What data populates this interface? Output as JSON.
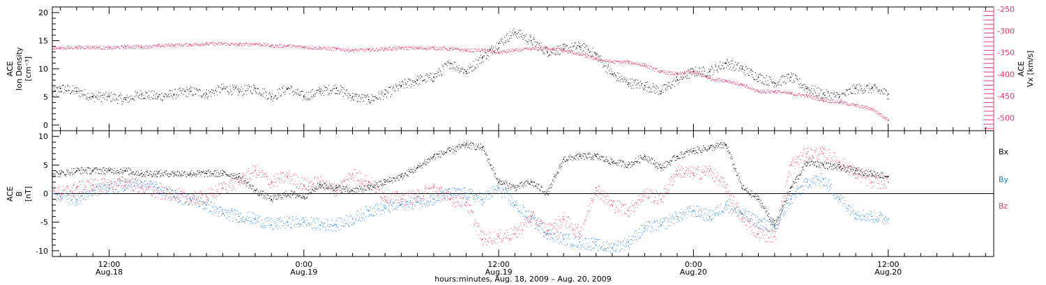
{
  "chart_data": [
    {
      "type": "scatter",
      "panel": "top",
      "x_unit": "hours since 2009-08-18 00:00 UT",
      "xlim": [
        8.5,
        66.5
      ],
      "left_axis": {
        "label_lines": [
          "ACE",
          "Ion Density",
          "[cm⁻³]"
        ],
        "ylim": [
          -1,
          21
        ],
        "ticks": [
          0,
          5,
          10,
          15,
          20
        ]
      },
      "right_axis": {
        "label_lines": [
          "ACE",
          "Vx [km/s]"
        ],
        "ylim": [
          -530,
          -245
        ],
        "ticks": [
          -250,
          -300,
          -350,
          -400,
          -450,
          -500
        ],
        "color": "#e8396a"
      },
      "series": [
        {
          "color": "#000000",
          "axis": "left",
          "x": [
            8.5,
            9.0,
            10.0,
            11.0,
            12.0,
            13.0,
            14.0,
            15.0,
            16.0,
            17.0,
            18.0,
            19.0,
            20.0,
            21.0,
            22.0,
            23.0,
            24.0,
            25.0,
            26.0,
            27.0,
            28.0,
            29.0,
            30.0,
            31.0,
            32.0,
            33.0,
            34.0,
            35.0,
            36.0,
            37.0,
            38.0,
            39.0,
            40.0,
            41.0,
            42.0,
            43.0,
            44.0,
            45.0,
            46.0,
            47.0,
            48.0,
            49.0,
            50.0,
            51.0,
            52.0,
            53.0,
            54.0,
            55.0,
            56.0,
            57.0,
            58.0,
            59.0,
            60.0
          ],
          "y": [
            5.5,
            6.5,
            6.0,
            5.0,
            5.0,
            4.5,
            5.5,
            5.0,
            5.5,
            6.0,
            5.5,
            6.5,
            6.0,
            6.5,
            5.0,
            6.5,
            5.0,
            6.0,
            6.5,
            5.0,
            4.5,
            5.5,
            7.0,
            8.0,
            8.5,
            11.0,
            9.5,
            12.0,
            14.5,
            16.5,
            15.0,
            13.0,
            13.5,
            14.0,
            12.5,
            9.0,
            7.5,
            7.0,
            6.0,
            8.0,
            9.5,
            9.5,
            11.0,
            10.0,
            8.5,
            7.5,
            8.5,
            6.5,
            5.5,
            5.0,
            6.5,
            6.5,
            5.5
          ]
        },
        {
          "color": "#e8396a",
          "axis": "right",
          "x": [
            8.5,
            9.0,
            10.0,
            11.0,
            12.0,
            13.0,
            14.0,
            15.0,
            16.0,
            17.0,
            18.0,
            19.0,
            20.0,
            21.0,
            22.0,
            23.0,
            24.0,
            25.0,
            26.0,
            27.0,
            28.0,
            29.0,
            30.0,
            31.0,
            32.0,
            33.0,
            34.0,
            35.0,
            36.0,
            37.0,
            38.0,
            39.0,
            40.0,
            41.0,
            42.0,
            43.0,
            44.0,
            45.0,
            46.0,
            47.0,
            48.0,
            49.0,
            50.0,
            51.0,
            52.0,
            53.0,
            54.0,
            55.0,
            56.0,
            57.0,
            58.0,
            59.0,
            60.0
          ],
          "y": [
            -340,
            -340,
            -338,
            -338,
            -340,
            -337,
            -337,
            -335,
            -333,
            -332,
            -330,
            -330,
            -332,
            -330,
            -335,
            -335,
            -338,
            -340,
            -342,
            -345,
            -344,
            -342,
            -340,
            -340,
            -340,
            -342,
            -345,
            -345,
            -350,
            -345,
            -342,
            -340,
            -345,
            -355,
            -365,
            -372,
            -372,
            -380,
            -395,
            -400,
            -395,
            -410,
            -415,
            -425,
            -440,
            -440,
            -445,
            -450,
            -460,
            -465,
            -472,
            -480,
            -505
          ]
        }
      ]
    },
    {
      "type": "scatter",
      "panel": "bottom",
      "x_unit": "hours since 2009-08-18 00:00 UT",
      "xlim": [
        8.5,
        66.5
      ],
      "left_axis": {
        "label_lines": [
          "ACE",
          "B",
          "[nT]"
        ],
        "ylim": [
          -11,
          11
        ],
        "ticks": [
          -10,
          -5,
          0,
          5,
          10
        ]
      },
      "x_tick_labels": [
        {
          "time": "12:00",
          "date": "Aug.18"
        },
        {
          "time": "0:00",
          "date": "Aug.19"
        },
        {
          "time": "12:00",
          "date": "Aug.19"
        },
        {
          "time": "0:00",
          "date": "Aug.20"
        },
        {
          "time": "12:00",
          "date": "Aug.20"
        }
      ],
      "x_tick_hours": [
        12,
        24,
        36,
        48,
        60
      ],
      "xlabel": "hours:minutes, Aug. 18, 2009 – Aug. 20, 2009",
      "series": [
        {
          "name": "Bx",
          "color": "#000000",
          "x": [
            8.5,
            9.0,
            10.0,
            11.0,
            12.0,
            13.0,
            14.0,
            15.0,
            16.0,
            17.0,
            18.0,
            19.0,
            20.0,
            21.0,
            22.0,
            23.0,
            24.0,
            25.0,
            26.0,
            27.0,
            28.0,
            29.0,
            30.0,
            31.0,
            32.0,
            33.0,
            34.0,
            35.0,
            36.0,
            37.0,
            38.0,
            39.0,
            40.0,
            41.0,
            42.0,
            43.0,
            44.0,
            45.0,
            46.0,
            47.0,
            48.0,
            49.0,
            50.0,
            51.0,
            52.0,
            53.0,
            54.0,
            55.0,
            56.0,
            57.0,
            58.0,
            59.0,
            60.0
          ],
          "y": [
            3.5,
            3.5,
            4.0,
            4.0,
            4.0,
            4.0,
            3.5,
            3.5,
            3.5,
            3.5,
            3.5,
            3.5,
            3.0,
            0.5,
            -1.0,
            0.0,
            -0.5,
            1.5,
            1.0,
            0.5,
            1.0,
            2.0,
            3.0,
            4.5,
            6.5,
            7.5,
            8.5,
            8.0,
            2.0,
            1.0,
            2.0,
            0.0,
            6.0,
            6.5,
            6.5,
            5.5,
            5.0,
            6.5,
            4.5,
            6.5,
            7.5,
            8.0,
            8.5,
            1.0,
            -1.0,
            -5.5,
            1.0,
            5.5,
            5.0,
            4.5,
            4.0,
            3.5,
            3.0
          ]
        },
        {
          "name": "By",
          "color": "#1f7fd4",
          "x": [
            8.5,
            9.0,
            10.0,
            11.0,
            12.0,
            13.0,
            14.0,
            15.0,
            16.0,
            17.0,
            18.0,
            19.0,
            20.0,
            21.0,
            22.0,
            23.0,
            24.0,
            25.0,
            26.0,
            27.0,
            28.0,
            29.0,
            30.0,
            31.0,
            32.0,
            33.0,
            34.0,
            35.0,
            36.0,
            37.0,
            38.0,
            39.0,
            40.0,
            41.0,
            42.0,
            43.0,
            44.0,
            45.0,
            46.0,
            47.0,
            48.0,
            49.0,
            50.0,
            51.0,
            52.0,
            53.0,
            54.0,
            55.0,
            56.0,
            57.0,
            58.0,
            59.0,
            60.0
          ],
          "y": [
            0.0,
            -0.5,
            -1.0,
            0.5,
            1.0,
            1.5,
            2.0,
            1.0,
            -0.5,
            -1.0,
            -2.0,
            -3.5,
            -4.0,
            -4.5,
            -5.5,
            -5.0,
            -5.0,
            -5.5,
            -5.5,
            -4.5,
            -3.0,
            -2.5,
            -2.0,
            -1.5,
            -1.0,
            0.0,
            0.0,
            -1.0,
            1.0,
            -2.0,
            -4.5,
            -7.0,
            -8.0,
            -8.5,
            -9.0,
            -9.5,
            -8.5,
            -6.0,
            -5.5,
            -4.0,
            -3.0,
            -4.0,
            -2.0,
            -3.5,
            -5.0,
            -6.0,
            -1.0,
            2.0,
            2.5,
            -1.0,
            -3.5,
            -4.0,
            -4.5
          ]
        },
        {
          "name": "Bz",
          "color": "#e8396a",
          "x": [
            8.5,
            9.0,
            10.0,
            11.0,
            12.0,
            13.0,
            14.0,
            15.0,
            16.0,
            17.0,
            18.0,
            19.0,
            20.0,
            21.0,
            22.0,
            23.0,
            24.0,
            25.0,
            26.0,
            27.0,
            28.0,
            29.0,
            30.0,
            31.0,
            32.0,
            33.0,
            34.0,
            35.0,
            36.0,
            37.0,
            38.0,
            39.0,
            40.0,
            41.0,
            42.0,
            43.0,
            44.0,
            45.0,
            46.0,
            47.0,
            48.0,
            49.0,
            50.0,
            51.0,
            52.0,
            53.0,
            54.0,
            55.0,
            56.0,
            57.0,
            58.0,
            59.0,
            60.0
          ],
          "y": [
            0.5,
            0.0,
            1.0,
            1.5,
            1.5,
            2.0,
            1.0,
            0.0,
            0.0,
            -1.0,
            -0.5,
            1.0,
            2.0,
            4.0,
            2.0,
            3.0,
            1.5,
            2.0,
            0.5,
            3.5,
            2.0,
            -0.5,
            -1.0,
            -0.5,
            1.0,
            -1.0,
            -1.5,
            -8.0,
            -7.5,
            -7.0,
            -4.0,
            -6.5,
            -4.5,
            -7.0,
            1.0,
            -2.0,
            -3.0,
            0.0,
            -1.0,
            4.0,
            3.5,
            4.0,
            1.0,
            -4.5,
            -7.0,
            -7.5,
            5.0,
            7.0,
            7.0,
            5.5,
            3.5,
            2.0,
            2.0
          ]
        }
      ]
    }
  ]
}
